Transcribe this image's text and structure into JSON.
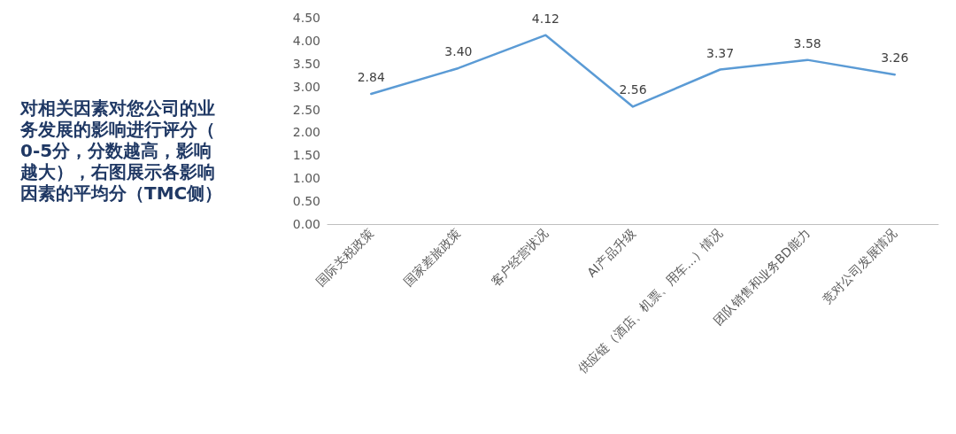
{
  "chart_data": {
    "type": "line",
    "title": "对相关因素对您公司的业务发展的影响进行评分（0-5分，分数越高，影响越大），右图展示各影响因素的平均分（TMC侧）",
    "categories": [
      "国际关税政策",
      "国家差旅政策",
      "客户经营状况",
      "AI产品升级",
      "供应链（酒店、机票、用车...）情况",
      "团队销售和业务BD能力",
      "竞对公司发展情况"
    ],
    "series": [
      {
        "color": "#5b9bd5",
        "values": [
          2.84,
          3.4,
          4.12,
          2.56,
          3.37,
          3.58,
          3.26
        ]
      }
    ],
    "ylim": [
      0,
      4.5
    ],
    "yticks": [
      {
        "value": 0,
        "label": "0.00"
      },
      {
        "value": 0.5,
        "label": "0.50"
      },
      {
        "value": 1,
        "label": "1.00"
      },
      {
        "value": 1.5,
        "label": "1.50"
      },
      {
        "value": 2,
        "label": "2.00"
      },
      {
        "value": 2.5,
        "label": "2.50"
      },
      {
        "value": 3,
        "label": "3.00"
      },
      {
        "value": 3.5,
        "label": "3.50"
      },
      {
        "value": 4,
        "label": "4.00"
      },
      {
        "value": 4.5,
        "label": "4.50"
      }
    ],
    "value_labels": [
      "2.84",
      "3.40",
      "4.12",
      "2.56",
      "3.37",
      "3.58",
      "3.26"
    ],
    "grid": false,
    "marker": "none",
    "line_style": "solid"
  }
}
